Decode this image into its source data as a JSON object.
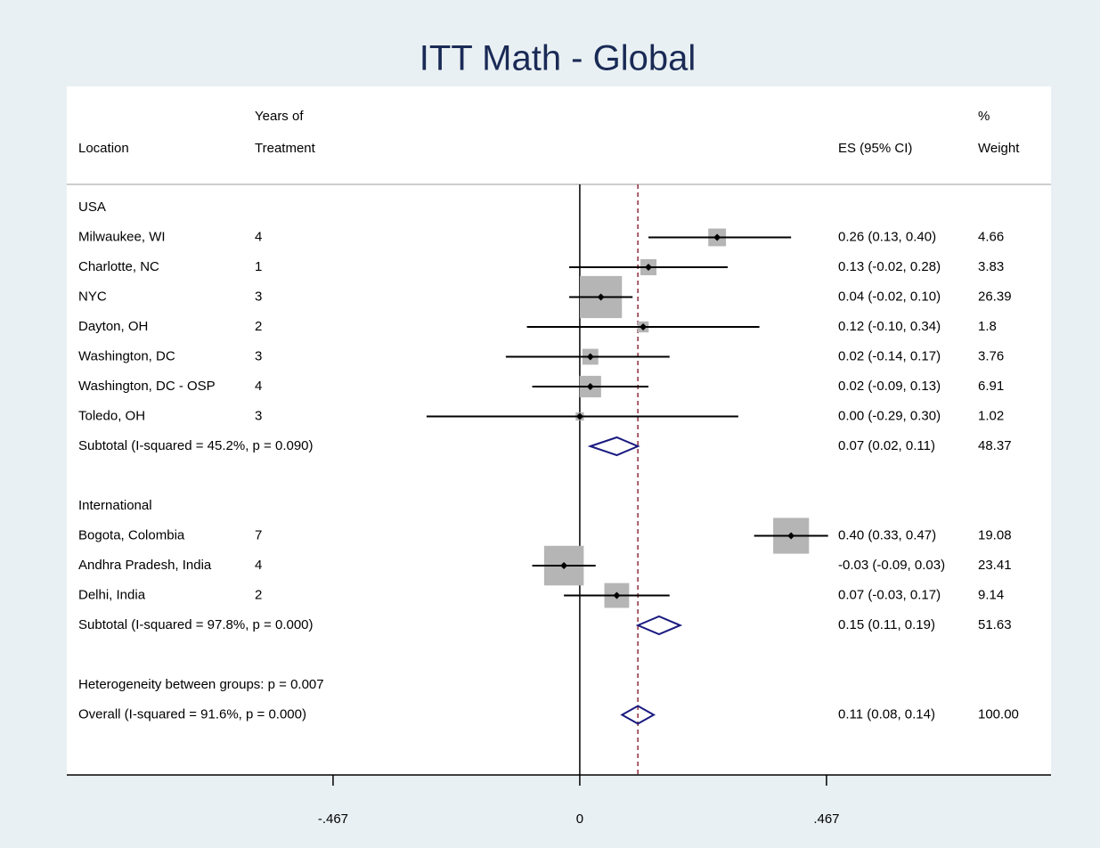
{
  "chart_data": {
    "type": "forest",
    "title": "ITT Math - Global",
    "headers": {
      "location": "Location",
      "years": [
        "Years of",
        "Treatment"
      ],
      "es": "ES (95% CI)",
      "weight": [
        "%",
        "Weight"
      ]
    },
    "groups": [
      {
        "name": "USA",
        "rows": [
          {
            "location": "Milwaukee, WI",
            "years": 4,
            "es": 0.26,
            "lo": 0.13,
            "hi": 0.4,
            "es_label": "0.26 (0.13, 0.40)",
            "weight": 4.66
          },
          {
            "location": "Charlotte, NC",
            "years": 1,
            "es": 0.13,
            "lo": -0.02,
            "hi": 0.28,
            "es_label": "0.13 (-0.02, 0.28)",
            "weight": 3.83
          },
          {
            "location": "NYC",
            "years": 3,
            "es": 0.04,
            "lo": -0.02,
            "hi": 0.1,
            "es_label": "0.04 (-0.02, 0.10)",
            "weight": 26.39
          },
          {
            "location": "Dayton, OH",
            "years": 2,
            "es": 0.12,
            "lo": -0.1,
            "hi": 0.34,
            "es_label": "0.12 (-0.10, 0.34)",
            "weight": 1.8
          },
          {
            "location": "Washington, DC",
            "years": 3,
            "es": 0.02,
            "lo": -0.14,
            "hi": 0.17,
            "es_label": "0.02 (-0.14, 0.17)",
            "weight": 3.76
          },
          {
            "location": "Washington, DC - OSP",
            "years": 4,
            "es": 0.02,
            "lo": -0.09,
            "hi": 0.13,
            "es_label": "0.02 (-0.09, 0.13)",
            "weight": 6.91
          },
          {
            "location": "Toledo, OH",
            "years": 3,
            "es": 0.0,
            "lo": -0.29,
            "hi": 0.3,
            "es_label": "0.00 (-0.29, 0.30)",
            "weight": 1.02
          }
        ],
        "subtotal": {
          "label": "Subtotal  (I-squared = 45.2%, p = 0.090)",
          "es": 0.07,
          "lo": 0.02,
          "hi": 0.11,
          "es_label": "0.07 (0.02, 0.11)",
          "weight": 48.37
        }
      },
      {
        "name": "International",
        "rows": [
          {
            "location": "Bogota, Colombia",
            "years": 7,
            "es": 0.4,
            "lo": 0.33,
            "hi": 0.47,
            "es_label": "0.40 (0.33, 0.47)",
            "weight": 19.08
          },
          {
            "location": "Andhra Pradesh, India",
            "years": 4,
            "es": -0.03,
            "lo": -0.09,
            "hi": 0.03,
            "es_label": "-0.03 (-0.09, 0.03)",
            "weight": 23.41
          },
          {
            "location": "Delhi, India",
            "years": 2,
            "es": 0.07,
            "lo": -0.03,
            "hi": 0.17,
            "es_label": "0.07 (-0.03, 0.17)",
            "weight": 9.14
          }
        ],
        "subtotal": {
          "label": "Subtotal  (I-squared = 97.8%, p = 0.000)",
          "es": 0.15,
          "lo": 0.11,
          "hi": 0.19,
          "es_label": "0.15 (0.11, 0.19)",
          "weight": 51.63
        }
      }
    ],
    "heterogeneity": "Heterogeneity between groups: p = 0.007",
    "overall": {
      "label": "Overall  (I-squared = 91.6%, p = 0.000)",
      "es": 0.11,
      "lo": 0.08,
      "hi": 0.14,
      "es_label": "0.11 (0.08, 0.14)",
      "weight": 100,
      "weight_label": "100.00"
    },
    "xlim": [
      -0.971,
      0.892
    ],
    "xticks": [
      {
        "value": -0.467,
        "label": "-.467"
      },
      0,
      {
        "value": 0.467,
        "label": ".467"
      }
    ],
    "box_color": "#b5b5b5",
    "diamond_color": "#1a1a80",
    "overall_line_color": "#8b2d3a"
  }
}
